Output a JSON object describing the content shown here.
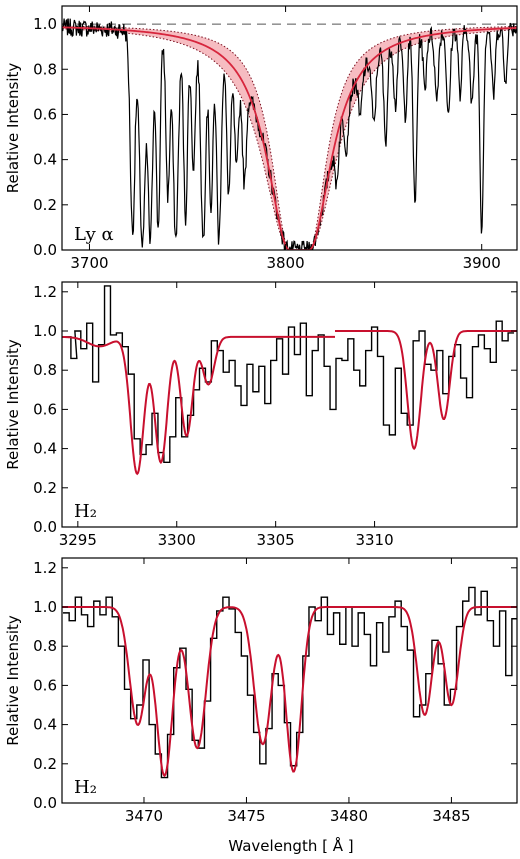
{
  "xlabel": "Wavelength  [ Å ]",
  "chart_data": [
    {
      "type": "line",
      "panel_label": "Ly α",
      "ylabel": "Relative Intensity",
      "xlim": [
        3686,
        3918
      ],
      "ylim": [
        0.0,
        1.08
      ],
      "xticks": [
        3700,
        3800,
        3900
      ],
      "xtick_labels": [
        "3700",
        "3800",
        "3900"
      ],
      "yticks": [
        0.0,
        0.2,
        0.4,
        0.6,
        0.8,
        1.0
      ],
      "ytick_labels": [
        "0.0",
        "0.2",
        "0.4",
        "0.6",
        "0.8",
        "1.0"
      ],
      "continuum_level": 1.0,
      "fit_color": "#d7263d",
      "band_color": "#f2a0a6",
      "data_color": "#000000",
      "lya_fit": {
        "center": 3807,
        "core_halfwidth": 5,
        "damping_scale": 14,
        "band_scale_low": 11,
        "band_scale_high": 17
      },
      "absorption_lines": [
        {
          "x": 3722,
          "depth": 0.92,
          "w": 1.2
        },
        {
          "x": 3727,
          "depth": 0.98,
          "w": 1.5
        },
        {
          "x": 3731,
          "depth": 0.97,
          "w": 1.2
        },
        {
          "x": 3735,
          "depth": 0.9,
          "w": 1.0
        },
        {
          "x": 3740,
          "depth": 0.75,
          "w": 1.0
        },
        {
          "x": 3744,
          "depth": 0.95,
          "w": 1.3
        },
        {
          "x": 3749,
          "depth": 0.85,
          "w": 1.0
        },
        {
          "x": 3753,
          "depth": 0.6,
          "w": 1.0
        },
        {
          "x": 3758,
          "depth": 0.95,
          "w": 1.2
        },
        {
          "x": 3762,
          "depth": 0.8,
          "w": 1.0
        },
        {
          "x": 3766,
          "depth": 0.95,
          "w": 1.1
        },
        {
          "x": 3771,
          "depth": 0.7,
          "w": 1.0
        },
        {
          "x": 3775,
          "depth": 0.55,
          "w": 1.0
        },
        {
          "x": 3779,
          "depth": 0.6,
          "w": 1.0
        },
        {
          "x": 3826,
          "depth": 0.4,
          "w": 1.0
        },
        {
          "x": 3831,
          "depth": 0.3,
          "w": 1.0
        },
        {
          "x": 3838,
          "depth": 0.25,
          "w": 0.9
        },
        {
          "x": 3845,
          "depth": 0.35,
          "w": 1.0
        },
        {
          "x": 3851,
          "depth": 0.45,
          "w": 0.9
        },
        {
          "x": 3856,
          "depth": 0.3,
          "w": 0.8
        },
        {
          "x": 3861,
          "depth": 0.35,
          "w": 0.9
        },
        {
          "x": 3866,
          "depth": 0.8,
          "w": 0.9
        },
        {
          "x": 3871,
          "depth": 0.25,
          "w": 0.8
        },
        {
          "x": 3877,
          "depth": 0.3,
          "w": 0.9
        },
        {
          "x": 3883,
          "depth": 0.4,
          "w": 0.9
        },
        {
          "x": 3889,
          "depth": 0.3,
          "w": 0.8
        },
        {
          "x": 3895,
          "depth": 0.35,
          "w": 0.9
        },
        {
          "x": 3900,
          "depth": 0.9,
          "w": 0.9
        },
        {
          "x": 3906,
          "depth": 0.3,
          "w": 0.9
        },
        {
          "x": 3912,
          "depth": 0.25,
          "w": 0.8
        }
      ]
    },
    {
      "type": "line",
      "panel_label": "H₂",
      "ylabel": "Relative Intensity",
      "xlim": [
        3294.2,
        3317.2
      ],
      "ylim": [
        0.0,
        1.25
      ],
      "xticks": [
        3295,
        3300,
        3305,
        3310
      ],
      "xtick_labels": [
        "3295",
        "3300",
        "3305",
        "3310"
      ],
      "yticks": [
        0.0,
        0.2,
        0.4,
        0.6,
        0.8,
        1.0,
        1.2
      ],
      "ytick_labels": [
        "0.0",
        "0.2",
        "0.4",
        "0.6",
        "0.8",
        "1.0",
        "1.2"
      ],
      "fit_color": "#c8102e",
      "data_color": "#000000",
      "fit_segments": [
        {
          "x_start": 3294.2,
          "x_end": 3308.0,
          "continuum": 0.97,
          "lines": [
            {
              "x": 3296.1,
              "depth": 0.05,
              "w": 0.6
            },
            {
              "x": 3298.0,
              "depth": 0.72,
              "w": 0.34
            },
            {
              "x": 3299.2,
              "depth": 0.66,
              "w": 0.32
            },
            {
              "x": 3300.5,
              "depth": 0.52,
              "w": 0.3
            },
            {
              "x": 3301.6,
              "depth": 0.25,
              "w": 0.3
            }
          ]
        },
        {
          "x_start": 3308.0,
          "x_end": 3317.2,
          "continuum": 1.0,
          "lines": [
            {
              "x": 3312.0,
              "depth": 0.6,
              "w": 0.33
            },
            {
              "x": 3313.5,
              "depth": 0.45,
              "w": 0.3
            }
          ]
        }
      ],
      "data_points": [
        {
          "x": 3294.5,
          "y": 0.97
        },
        {
          "x": 3294.8,
          "y": 0.86
        },
        {
          "x": 3295.0,
          "y": 1.0
        },
        {
          "x": 3295.3,
          "y": 0.91
        },
        {
          "x": 3295.6,
          "y": 1.04
        },
        {
          "x": 3295.9,
          "y": 0.74
        },
        {
          "x": 3296.2,
          "y": 0.93
        },
        {
          "x": 3296.5,
          "y": 1.23
        },
        {
          "x": 3296.8,
          "y": 0.98
        },
        {
          "x": 3297.1,
          "y": 0.99
        },
        {
          "x": 3297.4,
          "y": 0.92
        },
        {
          "x": 3297.7,
          "y": 0.78
        },
        {
          "x": 3298.0,
          "y": 0.45
        },
        {
          "x": 3298.3,
          "y": 0.37
        },
        {
          "x": 3298.6,
          "y": 0.42
        },
        {
          "x": 3298.9,
          "y": 0.58
        },
        {
          "x": 3299.2,
          "y": 0.38
        },
        {
          "x": 3299.5,
          "y": 0.33
        },
        {
          "x": 3299.8,
          "y": 0.46
        },
        {
          "x": 3300.1,
          "y": 0.66
        },
        {
          "x": 3300.4,
          "y": 0.46
        },
        {
          "x": 3300.7,
          "y": 0.57
        },
        {
          "x": 3301.0,
          "y": 0.7
        },
        {
          "x": 3301.3,
          "y": 0.81
        },
        {
          "x": 3301.6,
          "y": 0.74
        },
        {
          "x": 3301.9,
          "y": 0.95
        },
        {
          "x": 3302.2,
          "y": 0.9
        },
        {
          "x": 3302.5,
          "y": 0.79
        },
        {
          "x": 3302.8,
          "y": 0.85
        },
        {
          "x": 3303.1,
          "y": 0.72
        },
        {
          "x": 3303.4,
          "y": 0.62
        },
        {
          "x": 3303.7,
          "y": 0.83
        },
        {
          "x": 3304.0,
          "y": 0.69
        },
        {
          "x": 3304.3,
          "y": 0.82
        },
        {
          "x": 3304.6,
          "y": 0.63
        },
        {
          "x": 3304.9,
          "y": 0.85
        },
        {
          "x": 3305.2,
          "y": 0.96
        },
        {
          "x": 3305.5,
          "y": 0.78
        },
        {
          "x": 3305.8,
          "y": 1.02
        },
        {
          "x": 3306.1,
          "y": 0.88
        },
        {
          "x": 3306.4,
          "y": 1.04
        },
        {
          "x": 3306.7,
          "y": 0.67
        },
        {
          "x": 3307.0,
          "y": 0.9
        },
        {
          "x": 3307.3,
          "y": 0.98
        },
        {
          "x": 3307.6,
          "y": 0.82
        },
        {
          "x": 3307.9,
          "y": 0.6
        },
        {
          "x": 3308.2,
          "y": 0.86
        },
        {
          "x": 3308.5,
          "y": 0.85
        },
        {
          "x": 3308.8,
          "y": 0.96
        },
        {
          "x": 3309.1,
          "y": 0.8
        },
        {
          "x": 3309.4,
          "y": 0.72
        },
        {
          "x": 3309.7,
          "y": 0.9
        },
        {
          "x": 3310.0,
          "y": 1.02
        },
        {
          "x": 3310.3,
          "y": 0.87
        },
        {
          "x": 3310.6,
          "y": 0.52
        },
        {
          "x": 3310.9,
          "y": 0.47
        },
        {
          "x": 3311.2,
          "y": 0.81
        },
        {
          "x": 3311.5,
          "y": 0.58
        },
        {
          "x": 3311.8,
          "y": 0.52
        },
        {
          "x": 3312.1,
          "y": 0.95
        },
        {
          "x": 3312.4,
          "y": 1.0
        },
        {
          "x": 3312.7,
          "y": 0.83
        },
        {
          "x": 3313.0,
          "y": 0.8
        },
        {
          "x": 3313.3,
          "y": 0.9
        },
        {
          "x": 3313.6,
          "y": 0.68
        },
        {
          "x": 3313.9,
          "y": 0.87
        },
        {
          "x": 3314.2,
          "y": 0.93
        },
        {
          "x": 3314.5,
          "y": 0.76
        },
        {
          "x": 3314.8,
          "y": 0.66
        },
        {
          "x": 3315.1,
          "y": 0.92
        },
        {
          "x": 3315.4,
          "y": 0.98
        },
        {
          "x": 3315.7,
          "y": 0.91
        },
        {
          "x": 3316.0,
          "y": 0.84
        },
        {
          "x": 3316.3,
          "y": 1.05
        },
        {
          "x": 3316.6,
          "y": 0.95
        },
        {
          "x": 3316.9,
          "y": 0.99
        }
      ]
    },
    {
      "type": "line",
      "panel_label": "H₂",
      "ylabel": "Relative Intensity",
      "xlim": [
        3466.0,
        3488.2
      ],
      "ylim": [
        0.0,
        1.25
      ],
      "xticks": [
        3470,
        3475,
        3480,
        3485
      ],
      "xtick_labels": [
        "3470",
        "3475",
        "3480",
        "3485"
      ],
      "yticks": [
        0.0,
        0.2,
        0.4,
        0.6,
        0.8,
        1.0,
        1.2
      ],
      "ytick_labels": [
        "0.0",
        "0.2",
        "0.4",
        "0.6",
        "0.8",
        "1.0",
        "1.2"
      ],
      "fit_color": "#c8102e",
      "data_color": "#000000",
      "fit_segments": [
        {
          "x_start": 3466.0,
          "x_end": 3488.2,
          "continuum": 1.0,
          "lines": [
            {
              "x": 3469.7,
              "depth": 0.6,
              "w": 0.4
            },
            {
              "x": 3471.0,
              "depth": 0.86,
              "w": 0.4
            },
            {
              "x": 3472.6,
              "depth": 0.72,
              "w": 0.42
            },
            {
              "x": 3475.8,
              "depth": 0.7,
              "w": 0.42
            },
            {
              "x": 3477.3,
              "depth": 0.84,
              "w": 0.38
            },
            {
              "x": 3483.7,
              "depth": 0.55,
              "w": 0.36
            },
            {
              "x": 3485.0,
              "depth": 0.5,
              "w": 0.34
            }
          ]
        }
      ],
      "data_points": [
        {
          "x": 3466.2,
          "y": 0.97
        },
        {
          "x": 3466.5,
          "y": 0.93
        },
        {
          "x": 3466.8,
          "y": 1.05
        },
        {
          "x": 3467.1,
          "y": 0.96
        },
        {
          "x": 3467.4,
          "y": 0.9
        },
        {
          "x": 3467.7,
          "y": 1.03
        },
        {
          "x": 3468.0,
          "y": 0.96
        },
        {
          "x": 3468.3,
          "y": 1.05
        },
        {
          "x": 3468.6,
          "y": 0.95
        },
        {
          "x": 3468.9,
          "y": 0.8
        },
        {
          "x": 3469.2,
          "y": 0.58
        },
        {
          "x": 3469.5,
          "y": 0.43
        },
        {
          "x": 3469.8,
          "y": 0.5
        },
        {
          "x": 3470.1,
          "y": 0.73
        },
        {
          "x": 3470.4,
          "y": 0.4
        },
        {
          "x": 3470.7,
          "y": 0.25
        },
        {
          "x": 3471.0,
          "y": 0.13
        },
        {
          "x": 3471.3,
          "y": 0.35
        },
        {
          "x": 3471.6,
          "y": 0.69
        },
        {
          "x": 3471.9,
          "y": 0.79
        },
        {
          "x": 3472.2,
          "y": 0.58
        },
        {
          "x": 3472.5,
          "y": 0.32
        },
        {
          "x": 3472.8,
          "y": 0.28
        },
        {
          "x": 3473.1,
          "y": 0.52
        },
        {
          "x": 3473.4,
          "y": 0.84
        },
        {
          "x": 3473.7,
          "y": 0.98
        },
        {
          "x": 3474.0,
          "y": 1.05
        },
        {
          "x": 3474.3,
          "y": 0.99
        },
        {
          "x": 3474.6,
          "y": 0.87
        },
        {
          "x": 3474.9,
          "y": 0.75
        },
        {
          "x": 3475.2,
          "y": 0.55
        },
        {
          "x": 3475.5,
          "y": 0.36
        },
        {
          "x": 3475.8,
          "y": 0.2
        },
        {
          "x": 3476.1,
          "y": 0.38
        },
        {
          "x": 3476.4,
          "y": 0.66
        },
        {
          "x": 3476.7,
          "y": 0.6
        },
        {
          "x": 3477.0,
          "y": 0.41
        },
        {
          "x": 3477.3,
          "y": 0.19
        },
        {
          "x": 3477.6,
          "y": 0.36
        },
        {
          "x": 3477.9,
          "y": 0.75
        },
        {
          "x": 3478.2,
          "y": 1.0
        },
        {
          "x": 3478.5,
          "y": 0.93
        },
        {
          "x": 3478.8,
          "y": 1.05
        },
        {
          "x": 3479.1,
          "y": 0.86
        },
        {
          "x": 3479.4,
          "y": 0.97
        },
        {
          "x": 3479.7,
          "y": 0.81
        },
        {
          "x": 3480.0,
          "y": 1.0
        },
        {
          "x": 3480.3,
          "y": 0.8
        },
        {
          "x": 3480.6,
          "y": 0.97
        },
        {
          "x": 3480.9,
          "y": 0.86
        },
        {
          "x": 3481.2,
          "y": 0.7
        },
        {
          "x": 3481.5,
          "y": 0.92
        },
        {
          "x": 3481.8,
          "y": 0.77
        },
        {
          "x": 3482.1,
          "y": 0.95
        },
        {
          "x": 3482.4,
          "y": 1.03
        },
        {
          "x": 3482.7,
          "y": 0.9
        },
        {
          "x": 3483.0,
          "y": 0.78
        },
        {
          "x": 3483.3,
          "y": 0.44
        },
        {
          "x": 3483.6,
          "y": 0.5
        },
        {
          "x": 3483.9,
          "y": 0.66
        },
        {
          "x": 3484.2,
          "y": 0.83
        },
        {
          "x": 3484.5,
          "y": 0.71
        },
        {
          "x": 3484.8,
          "y": 0.5
        },
        {
          "x": 3485.1,
          "y": 0.58
        },
        {
          "x": 3485.4,
          "y": 0.9
        },
        {
          "x": 3485.7,
          "y": 1.03
        },
        {
          "x": 3486.0,
          "y": 1.1
        },
        {
          "x": 3486.3,
          "y": 0.96
        },
        {
          "x": 3486.6,
          "y": 1.08
        },
        {
          "x": 3486.9,
          "y": 0.93
        },
        {
          "x": 3487.2,
          "y": 0.8
        },
        {
          "x": 3487.5,
          "y": 0.98
        },
        {
          "x": 3487.8,
          "y": 0.65
        },
        {
          "x": 3488.1,
          "y": 0.94
        }
      ]
    }
  ]
}
